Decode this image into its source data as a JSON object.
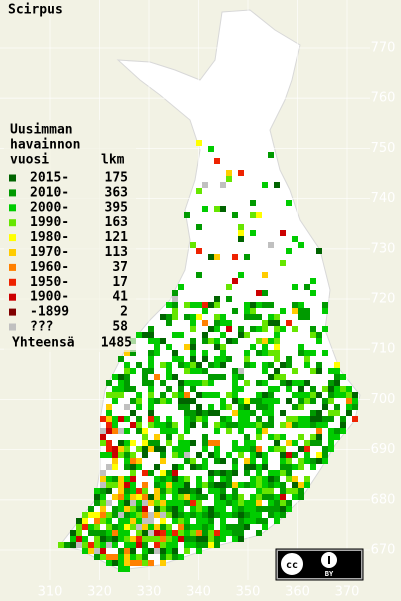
{
  "title": "Scirpus",
  "legend": {
    "heading": [
      "Uusimman",
      "havainnon",
      "vuosi"
    ],
    "count_heading": "lkm",
    "rows": [
      {
        "label": "2015-",
        "count": 175,
        "color": "#006400"
      },
      {
        "label": "2010-",
        "count": 363,
        "color": "#009a00"
      },
      {
        "label": "2000-",
        "count": 395,
        "color": "#00cc00"
      },
      {
        "label": "1990-",
        "count": 163,
        "color": "#66e600"
      },
      {
        "label": "1980-",
        "count": 121,
        "color": "#ffff00"
      },
      {
        "label": "1970-",
        "count": 113,
        "color": "#ffcc00"
      },
      {
        "label": "1960-",
        "count": 37,
        "color": "#ff8000"
      },
      {
        "label": "1950-",
        "count": 17,
        "color": "#ee2200"
      },
      {
        "label": "1900-",
        "count": 41,
        "color": "#cc0000"
      },
      {
        "label": "-1899",
        "count": 2,
        "color": "#800000"
      },
      {
        "label": "???",
        "count": 58,
        "color": "#c0c0c0"
      }
    ],
    "total_label": "Yhteensä",
    "total": 1485
  },
  "map": {
    "x_labels": [
      "310",
      "320",
      "330",
      "340",
      "350",
      "360",
      "370"
    ],
    "y_labels": [
      "770",
      "760",
      "750",
      "740",
      "730",
      "720",
      "710",
      "700",
      "690",
      "680",
      "670"
    ]
  },
  "license": {
    "badge": "BY"
  }
}
